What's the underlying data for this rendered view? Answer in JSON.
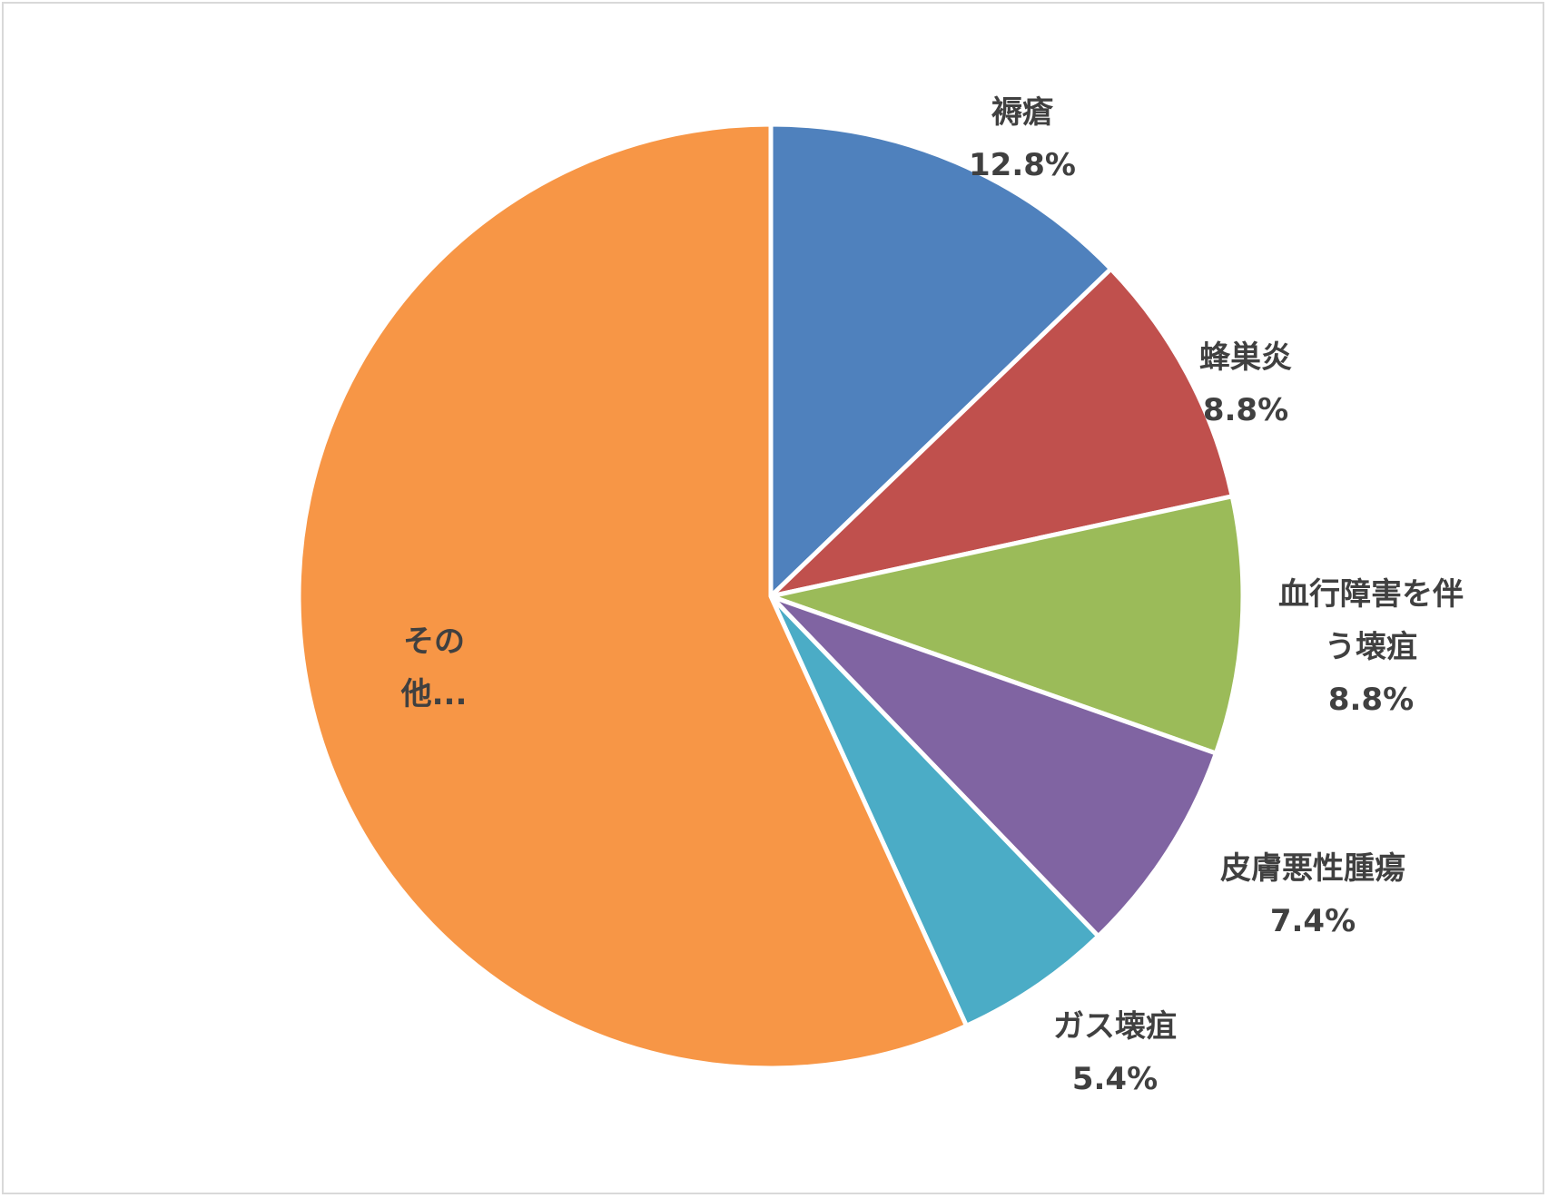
{
  "chart_data": {
    "type": "pie",
    "start_angle_deg": 0,
    "direction": "clockwise",
    "slices": [
      {
        "label_lines": [
          "褥瘡"
        ],
        "value": 12.8,
        "value_label": "12.8%",
        "color": "#4f81bd"
      },
      {
        "label_lines": [
          "蜂巣炎"
        ],
        "value": 8.8,
        "value_label": "8.8%",
        "color": "#c0504d"
      },
      {
        "label_lines": [
          "血行障害を伴",
          "う壊疽"
        ],
        "value": 8.8,
        "value_label": "8.8%",
        "color": "#9bbb59"
      },
      {
        "label_lines": [
          "皮膚悪性腫瘍"
        ],
        "value": 7.4,
        "value_label": "7.4%",
        "color": "#8064a2"
      },
      {
        "label_lines": [
          "ガス壊疽"
        ],
        "value": 5.4,
        "value_label": "5.4%",
        "color": "#4bacc6"
      },
      {
        "label_lines": [
          "その",
          "他..."
        ],
        "value": 56.8,
        "value_label": "",
        "color": "#f79646"
      }
    ],
    "legend": "none",
    "slice_border_color": "#ffffff"
  }
}
